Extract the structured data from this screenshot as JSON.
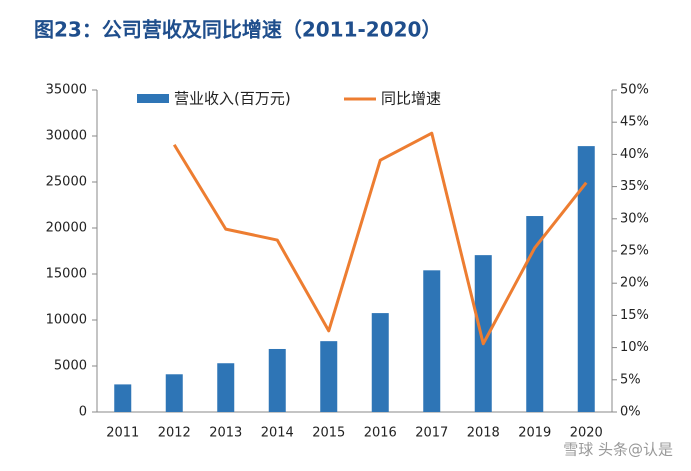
{
  "chart_data": {
    "type": "bar-line",
    "title": "图23：公司营收及同比增速（2011-2020）",
    "categories": [
      "2011",
      "2012",
      "2013",
      "2014",
      "2015",
      "2016",
      "2017",
      "2018",
      "2019",
      "2020"
    ],
    "series": [
      {
        "name": "营业收入(百万元)",
        "type": "bar",
        "color": "#2e75b6",
        "values": [
          3000,
          4100,
          5300,
          6850,
          7700,
          10750,
          15400,
          17050,
          21300,
          28900
        ]
      },
      {
        "name": "同比增速",
        "type": "line",
        "axis": "y2",
        "color": "#ed7d31",
        "values": [
          null,
          41.5,
          28.4,
          26.7,
          12.6,
          39.1,
          43.3,
          10.6,
          25.5,
          35.6
        ]
      }
    ],
    "ylim": [
      0,
      35000
    ],
    "yticks": [
      0,
      5000,
      10000,
      15000,
      20000,
      25000,
      30000,
      35000
    ],
    "y2lim": [
      0,
      50
    ],
    "y2ticks": [
      {
        "value": 0,
        "label": "0%"
      },
      {
        "value": 5,
        "label": "5%"
      },
      {
        "value": 10,
        "label": "10%"
      },
      {
        "value": 15,
        "label": "15%"
      },
      {
        "value": 20,
        "label": "20%"
      },
      {
        "value": 25,
        "label": "25%"
      },
      {
        "value": 30,
        "label": "30%"
      },
      {
        "value": 35,
        "label": "35%"
      },
      {
        "value": 40,
        "label": "40%"
      },
      {
        "value": 45,
        "label": "45%"
      },
      {
        "value": 50,
        "label": "50%"
      }
    ],
    "legend": "top",
    "watermark": "雪球 头条@认是"
  }
}
